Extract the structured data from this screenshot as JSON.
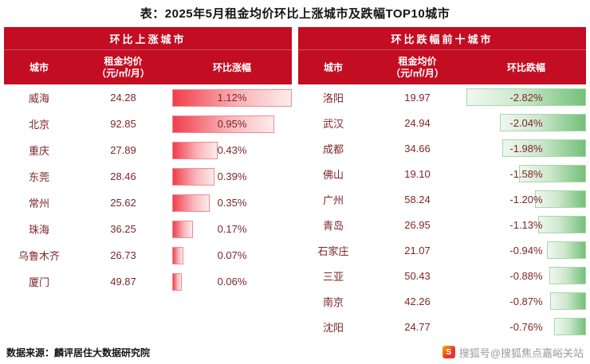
{
  "title": "表：2025年5月租金均价环比上涨城市及跌幅TOP10城市",
  "colors": {
    "header_red": "#c30d23",
    "data_text": "#7f2629",
    "rise_bar_start": "#ef3f4b",
    "rise_bar_end": "#fdecec",
    "fall_bar_start": "#74c078",
    "fall_bar_end": "#eff7ef"
  },
  "icons": {
    "sohu_logo": "S"
  },
  "tables": {
    "rise": {
      "section_title": "环比上涨城市",
      "columns": {
        "city": "城市",
        "price_line1": "租金均价",
        "price_line2": "（元/㎡/月）",
        "change": "环比涨幅"
      },
      "rows": [
        {
          "city": "威海",
          "price": "24.28",
          "change": "1.12%",
          "bar_pct": 100
        },
        {
          "city": "北京",
          "price": "92.85",
          "change": "0.95%",
          "bar_pct": 85
        },
        {
          "city": "重庆",
          "price": "27.89",
          "change": "0.43%",
          "bar_pct": 38
        },
        {
          "city": "东莞",
          "price": "28.46",
          "change": "0.39%",
          "bar_pct": 35
        },
        {
          "city": "常州",
          "price": "25.62",
          "change": "0.35%",
          "bar_pct": 31
        },
        {
          "city": "珠海",
          "price": "36.25",
          "change": "0.17%",
          "bar_pct": 17
        },
        {
          "city": "乌鲁木齐",
          "price": "26.73",
          "change": "0.07%",
          "bar_pct": 9
        },
        {
          "city": "厦门",
          "price": "49.87",
          "change": "0.06%",
          "bar_pct": 8
        }
      ]
    },
    "fall": {
      "section_title": "环比跌幅前十城市",
      "columns": {
        "city": "城市",
        "price_line1": "租金均价",
        "price_line2": "（元/㎡/月）",
        "change": "环比跌幅"
      },
      "rows": [
        {
          "city": "洛阳",
          "price": "19.97",
          "change": "-2.82%",
          "bar_pct": 100
        },
        {
          "city": "武汉",
          "price": "24.94",
          "change": "-2.04%",
          "bar_pct": 72
        },
        {
          "city": "成都",
          "price": "34.66",
          "change": "-1.98%",
          "bar_pct": 70
        },
        {
          "city": "佛山",
          "price": "19.10",
          "change": "-1.58%",
          "bar_pct": 56
        },
        {
          "city": "广州",
          "price": "58.24",
          "change": "-1.20%",
          "bar_pct": 43
        },
        {
          "city": "青岛",
          "price": "26.95",
          "change": "-1.13%",
          "bar_pct": 40
        },
        {
          "city": "石家庄",
          "price": "21.07",
          "change": "-0.94%",
          "bar_pct": 33
        },
        {
          "city": "三亚",
          "price": "50.43",
          "change": "-0.88%",
          "bar_pct": 31
        },
        {
          "city": "南京",
          "price": "42.26",
          "change": "-0.87%",
          "bar_pct": 30
        },
        {
          "city": "沈阳",
          "price": "24.77",
          "change": "-0.76%",
          "bar_pct": 27
        }
      ]
    }
  },
  "footer": {
    "source": "数据来源：麟评居住大数据研究院",
    "watermark": "搜狐号@搜狐焦点嘉峪关站"
  },
  "chart_data": [
    {
      "type": "bar",
      "title": "环比上涨城市",
      "orientation": "horizontal",
      "categories": [
        "威海",
        "北京",
        "重庆",
        "东莞",
        "常州",
        "珠海",
        "乌鲁木齐",
        "厦门"
      ],
      "series": [
        {
          "name": "租金均价（元/㎡/月）",
          "values": [
            24.28,
            92.85,
            27.89,
            28.46,
            25.62,
            36.25,
            26.73,
            49.87
          ]
        },
        {
          "name": "环比涨幅(%)",
          "values": [
            1.12,
            0.95,
            0.43,
            0.39,
            0.35,
            0.17,
            0.07,
            0.06
          ]
        }
      ],
      "xlabel": "环比涨幅",
      "ylabel": "城市",
      "xlim": [
        0,
        1.12
      ],
      "grid": false,
      "legend_position": "none"
    },
    {
      "type": "bar",
      "title": "环比跌幅前十城市",
      "orientation": "horizontal",
      "categories": [
        "洛阳",
        "武汉",
        "成都",
        "佛山",
        "广州",
        "青岛",
        "石家庄",
        "三亚",
        "南京",
        "沈阳"
      ],
      "series": [
        {
          "name": "租金均价（元/㎡/月）",
          "values": [
            19.97,
            24.94,
            34.66,
            19.1,
            58.24,
            26.95,
            21.07,
            50.43,
            42.26,
            24.77
          ]
        },
        {
          "name": "环比跌幅(%)",
          "values": [
            -2.82,
            -2.04,
            -1.98,
            -1.58,
            -1.2,
            -1.13,
            -0.94,
            -0.88,
            -0.87,
            -0.76
          ]
        }
      ],
      "xlabel": "环比跌幅",
      "ylabel": "城市",
      "xlim": [
        -2.82,
        0
      ],
      "grid": false,
      "legend_position": "none"
    }
  ]
}
